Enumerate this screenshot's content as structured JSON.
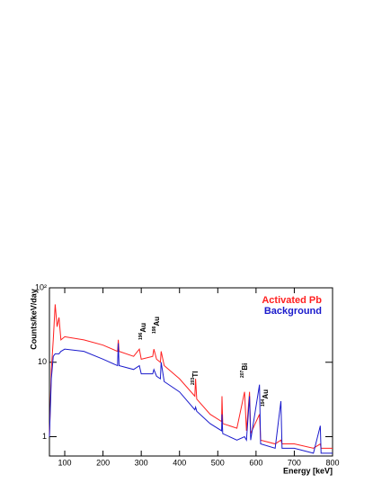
{
  "chart_data": {
    "type": "line",
    "y_label": "Counts/keV/day",
    "x_label": "Energy [keV]",
    "log_y": true,
    "legend_position": "upper right",
    "x": [
      60,
      65,
      70,
      75,
      80,
      85,
      90,
      100,
      150,
      200,
      238,
      240,
      242,
      280,
      295,
      300,
      330,
      333,
      340,
      350,
      352,
      360,
      400,
      440,
      442,
      445,
      480,
      510,
      511,
      513,
      550,
      570,
      575,
      583,
      586,
      609,
      612,
      650,
      665,
      668,
      700,
      750,
      768,
      770,
      800
    ],
    "series": [
      {
        "name": "Activated Pb",
        "color": "#ff2020",
        "values": [
          1,
          8,
          20,
          60,
          30,
          40,
          20,
          22,
          20,
          17,
          14,
          20,
          14,
          12,
          15,
          11,
          12,
          15,
          11,
          10,
          14,
          9,
          6,
          3.5,
          6,
          3.2,
          2,
          1.6,
          3.5,
          1.5,
          1.3,
          4,
          1.2,
          4,
          1.1,
          2,
          0.9,
          0.8,
          0.9,
          0.8,
          0.8,
          0.7,
          0.8,
          0.7,
          0.7
        ]
      },
      {
        "name": "Background",
        "color": "#1a1acc",
        "values": [
          1,
          6,
          12,
          13,
          13,
          13,
          14,
          15,
          14,
          11,
          9,
          18,
          9,
          8,
          9,
          7,
          7,
          8,
          6.5,
          6,
          10,
          5.5,
          4,
          2.3,
          2.5,
          2.2,
          1.5,
          1.2,
          2,
          1.1,
          0.9,
          1,
          0.9,
          3.5,
          0.9,
          5,
          0.8,
          0.7,
          3,
          0.7,
          0.7,
          0.6,
          1.4,
          0.6,
          0.6
        ]
      }
    ],
    "annotations": [
      {
        "mass": "196",
        "element": "Au"
      },
      {
        "mass": "198",
        "element": "Au"
      },
      {
        "mass": "203",
        "element": "Tl"
      },
      {
        "mass": "207",
        "element": "Bi"
      },
      {
        "mass": "194",
        "element": "Au"
      }
    ],
    "xlim": [
      60,
      800
    ],
    "xticks": [
      100,
      200,
      300,
      400,
      500,
      600,
      700,
      800
    ],
    "ylim": [
      0.55,
      100
    ],
    "yticks": [
      1,
      10,
      {
        "value": 100,
        "label": "10²"
      }
    ]
  }
}
